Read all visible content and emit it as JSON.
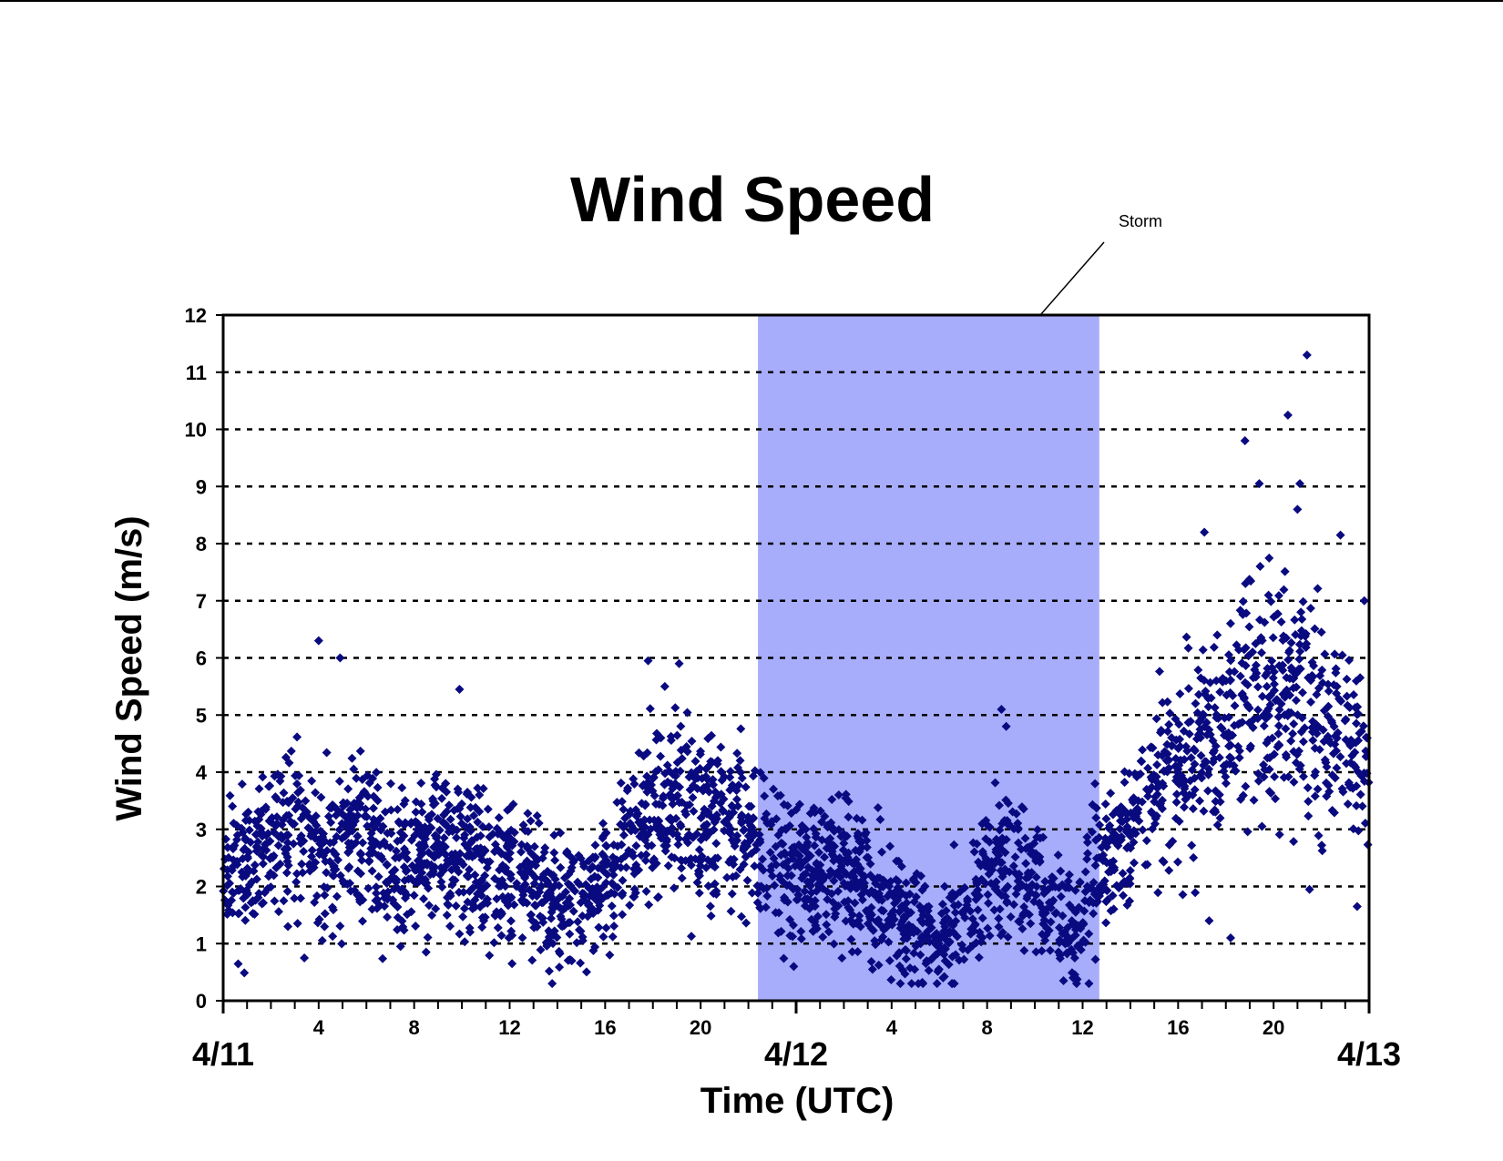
{
  "chart_data": {
    "type": "scatter",
    "title": "Wind Speed",
    "xlabel": "Time (UTC)",
    "ylabel": "Wind Speed (m/s)",
    "ylim": [
      0,
      12
    ],
    "y_ticks": [
      "0",
      "1",
      "2",
      "3",
      "4",
      "5",
      "6",
      "7",
      "8",
      "9",
      "10",
      "11",
      "12"
    ],
    "x_unit": "hours since 4/11 00 UTC",
    "xlim": [
      0,
      48
    ],
    "date_labels": [
      {
        "label": "4/11",
        "x": 0
      },
      {
        "label": "4/12",
        "x": 24
      },
      {
        "label": "4/13",
        "x": 48
      }
    ],
    "hour_labels": [
      {
        "label": "4",
        "x": 4
      },
      {
        "label": "8",
        "x": 8
      },
      {
        "label": "12",
        "x": 12
      },
      {
        "label": "16",
        "x": 16
      },
      {
        "label": "20",
        "x": 20
      },
      {
        "label": "4",
        "x": 28
      },
      {
        "label": "8",
        "x": 32
      },
      {
        "label": "12",
        "x": 36
      },
      {
        "label": "16",
        "x": 40
      },
      {
        "label": "20",
        "x": 44
      }
    ],
    "grid": "horizontal dashed",
    "marker_color": "#0A0A80",
    "storm_band": {
      "label": "Storm",
      "x_start": 22.4,
      "x_end": 36.7,
      "color": "#A8ADFB"
    },
    "trend_knots": [
      [
        0,
        2.2
      ],
      [
        1.5,
        2.5
      ],
      [
        3,
        3.0
      ],
      [
        4,
        2.4
      ],
      [
        5,
        3.0
      ],
      [
        6,
        3.1
      ],
      [
        7,
        2.2
      ],
      [
        8,
        2.4
      ],
      [
        9,
        2.7
      ],
      [
        10,
        2.6
      ],
      [
        11,
        2.3
      ],
      [
        12,
        2.2
      ],
      [
        13,
        2.0
      ],
      [
        14,
        1.8
      ],
      [
        15,
        1.7
      ],
      [
        16,
        2.2
      ],
      [
        17,
        2.8
      ],
      [
        18,
        3.3
      ],
      [
        19,
        3.4
      ],
      [
        20,
        3.2
      ],
      [
        21,
        3.0
      ],
      [
        22,
        2.8
      ],
      [
        23,
        2.5
      ],
      [
        24,
        2.2
      ],
      [
        25,
        2.3
      ],
      [
        26,
        2.4
      ],
      [
        27,
        2.0
      ],
      [
        28,
        1.6
      ],
      [
        29,
        1.2
      ],
      [
        30,
        1.0
      ],
      [
        31,
        1.4
      ],
      [
        32,
        2.0
      ],
      [
        33,
        2.5
      ],
      [
        34,
        2.0
      ],
      [
        35,
        1.5
      ],
      [
        35.8,
        1.2
      ],
      [
        36.5,
        2.3
      ],
      [
        37.5,
        2.7
      ],
      [
        38.5,
        3.5
      ],
      [
        39.5,
        4.0
      ],
      [
        40.5,
        4.3
      ],
      [
        41.5,
        4.6
      ],
      [
        42.5,
        5.2
      ],
      [
        43.5,
        5.5
      ],
      [
        44.5,
        5.4
      ],
      [
        45.5,
        5.0
      ],
      [
        46.5,
        4.6
      ],
      [
        48,
        4.3
      ]
    ],
    "points": [
      {
        "x": 4.0,
        "y": 6.3
      },
      {
        "x": 4.9,
        "y": 6.0
      },
      {
        "x": 9.9,
        "y": 5.45
      },
      {
        "x": 17.8,
        "y": 5.95
      },
      {
        "x": 19.1,
        "y": 5.9
      },
      {
        "x": 18.5,
        "y": 5.5
      },
      {
        "x": 3.4,
        "y": 0.75
      },
      {
        "x": 8.5,
        "y": 0.85
      },
      {
        "x": 12.1,
        "y": 0.65
      },
      {
        "x": 14.6,
        "y": 0.7
      },
      {
        "x": 23.9,
        "y": 0.6
      },
      {
        "x": 27.2,
        "y": 0.55
      },
      {
        "x": 32.6,
        "y": 5.1
      },
      {
        "x": 32.8,
        "y": 4.8
      },
      {
        "x": 35.2,
        "y": 0.35
      },
      {
        "x": 41.1,
        "y": 8.2
      },
      {
        "x": 42.8,
        "y": 9.8
      },
      {
        "x": 43.4,
        "y": 9.05
      },
      {
        "x": 44.6,
        "y": 10.25
      },
      {
        "x": 45.1,
        "y": 9.05
      },
      {
        "x": 45.4,
        "y": 11.3
      },
      {
        "x": 45.0,
        "y": 8.6
      },
      {
        "x": 46.8,
        "y": 8.15
      },
      {
        "x": 47.8,
        "y": 7.0
      },
      {
        "x": 41.3,
        "y": 1.4
      },
      {
        "x": 42.2,
        "y": 1.1
      },
      {
        "x": 47.5,
        "y": 1.65
      }
    ]
  }
}
